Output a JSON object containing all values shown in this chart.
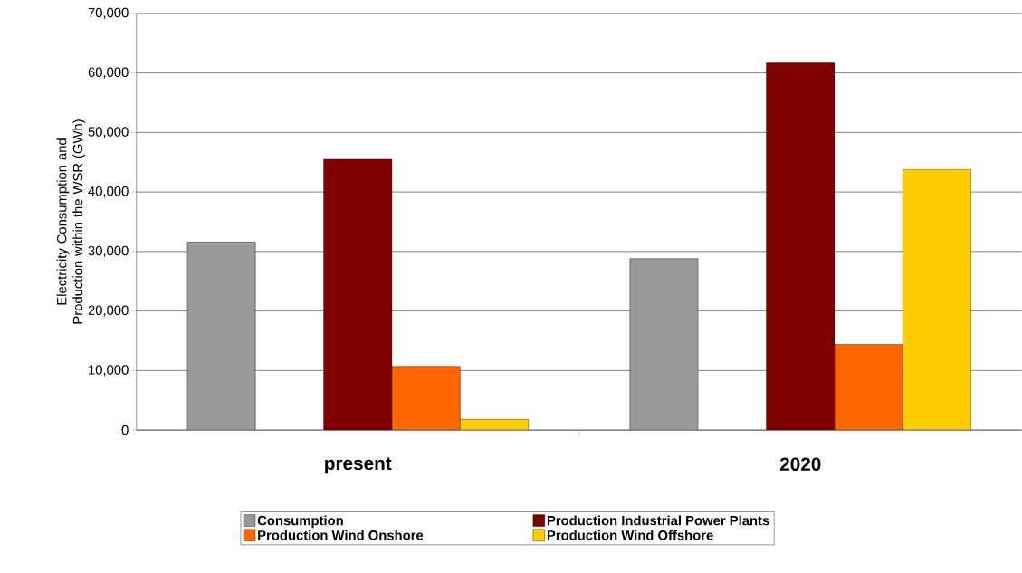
{
  "chart_data": {
    "type": "bar",
    "ylabel": "Electricity Consumption and Production within the WSR (GWh)",
    "categories": [
      "present",
      "2020"
    ],
    "series": [
      {
        "name": "Consumption",
        "color": "#999999",
        "values": [
          31600,
          28800
        ]
      },
      {
        "name": "Production Industrial Power Plants",
        "color": "#800000",
        "values": [
          45500,
          61700
        ]
      },
      {
        "name": "Production Wind Onshore",
        "color": "#ff6600",
        "values": [
          10700,
          14400
        ]
      },
      {
        "name": "Production Wind Offshore",
        "color": "#ffcc00",
        "values": [
          1800,
          43800
        ]
      }
    ],
    "ylim": [
      0,
      70000
    ],
    "yticks": [
      0,
      {
        "value": 10000,
        "label": "10,000"
      },
      {
        "value": 20000,
        "label": "20,000"
      },
      {
        "value": 30000,
        "label": "30,000"
      },
      {
        "value": 40000,
        "label": "40,000"
      },
      {
        "value": 50000,
        "label": "50,000"
      },
      {
        "value": 60000,
        "label": "60,000"
      },
      {
        "value": 70000,
        "label": "70,000"
      }
    ],
    "grid": "y",
    "legend": "bottom"
  }
}
